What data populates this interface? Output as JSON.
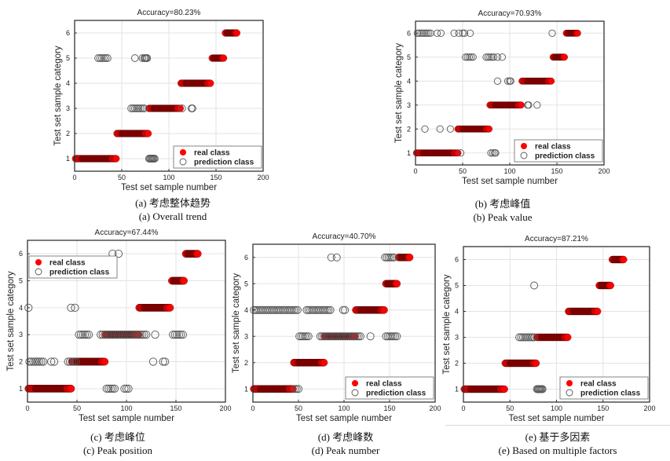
{
  "figure": {
    "colors": {
      "real": "#ff0000",
      "real_dark": "#8b0000",
      "pred_stroke": "#555555",
      "grid": "#e3e3e3",
      "axis": "#333333"
    }
  },
  "chart_data": [
    {
      "id": "a",
      "type": "scatter",
      "title": "Accuracy=80.23%",
      "xlabel": "Test set sample number",
      "ylabel": "Test set sample category",
      "xlim": [
        0,
        200
      ],
      "ylim": [
        0.5,
        6.5
      ],
      "xticks": [
        0,
        50,
        100,
        150,
        200
      ],
      "yticks": [
        1,
        2,
        3,
        4,
        5,
        6
      ],
      "grid": true,
      "legend": {
        "position": "bottom-right",
        "entries": [
          "real class",
          "prediction  class"
        ]
      },
      "caption_cn": "(a)  考虑整体趋势",
      "caption_en": "(a) Overall trend",
      "series": [
        {
          "name": "real class",
          "segments": [
            {
              "y": 1,
              "x": [
                1,
                44
              ]
            },
            {
              "y": 2,
              "x": [
                45,
                78
              ]
            },
            {
              "y": 3,
              "x": [
                79,
                112
              ]
            },
            {
              "y": 4,
              "x": [
                113,
                144
              ]
            },
            {
              "y": 5,
              "x": [
                146,
                158
              ]
            },
            {
              "y": 6,
              "x": [
                160,
                172
              ]
            }
          ]
        },
        {
          "name": "prediction  class",
          "points": [
            {
              "y": 5,
              "x": [
                25,
                27,
                29,
                31,
                33,
                35,
                64,
                72,
                74,
                75,
                76,
                77
              ]
            },
            {
              "y": 3,
              "x": [
                60,
                62,
                64,
                66,
                68,
                70,
                72,
                74,
                114,
                124,
                125
              ]
            },
            {
              "y": 1,
              "x": [
                79,
                80,
                81,
                82,
                83,
                84,
                85
              ]
            }
          ]
        }
      ]
    },
    {
      "id": "b",
      "type": "scatter",
      "title": "Accuracy=70.93%",
      "xlabel": "Test set sample number",
      "ylabel": "Test set sample category",
      "xlim": [
        0,
        200
      ],
      "ylim": [
        0.5,
        6.5
      ],
      "xticks": [
        0,
        50,
        100,
        150,
        200
      ],
      "yticks": [
        1,
        2,
        3,
        4,
        5,
        6
      ],
      "grid": true,
      "legend": {
        "position": "bottom-right",
        "entries": [
          "real class",
          "prediction  class"
        ]
      },
      "caption_cn": "(b)  考虑峰值",
      "caption_en": "(b) Peak value",
      "series": [
        {
          "name": "real class",
          "segments": [
            {
              "y": 1,
              "x": [
                1,
                45
              ]
            },
            {
              "y": 2,
              "x": [
                45,
                78
              ]
            },
            {
              "y": 3,
              "x": [
                79,
                112
              ]
            },
            {
              "y": 4,
              "x": [
                113,
                144
              ]
            },
            {
              "y": 5,
              "x": [
                146,
                158
              ]
            },
            {
              "y": 6,
              "x": [
                160,
                172
              ]
            }
          ]
        },
        {
          "name": "prediction  class",
          "points": [
            {
              "y": 6,
              "x": [
                2,
                4,
                6,
                8,
                10,
                12,
                14,
                16,
                23,
                27,
                41,
                46,
                50,
                52,
                58,
                145
              ]
            },
            {
              "y": 5,
              "x": [
                53,
                55,
                57,
                59,
                61,
                75,
                77,
                79,
                81,
                83,
                87,
                92
              ]
            },
            {
              "y": 4,
              "x": [
                87,
                98,
                100,
                101
              ]
            },
            {
              "y": 3,
              "x": [
                119,
                120,
                129
              ]
            },
            {
              "y": 2,
              "x": [
                10,
                26,
                37
              ]
            },
            {
              "y": 1,
              "x": [
                48,
                80,
                82,
                84,
                85
              ]
            }
          ]
        }
      ]
    },
    {
      "id": "c",
      "type": "scatter",
      "title": "Accuracy=67.44%",
      "xlabel": "Test set sample number",
      "ylabel": "Test set sample category",
      "xlim": [
        0,
        200
      ],
      "ylim": [
        0.5,
        6.5
      ],
      "xticks": [
        0,
        50,
        100,
        150,
        200
      ],
      "yticks": [
        1,
        2,
        3,
        4,
        5,
        6
      ],
      "grid": true,
      "legend": {
        "position": "top-left",
        "entries": [
          "real class",
          "prediction  class"
        ]
      },
      "caption_cn": "(c)  考虑峰位",
      "caption_en": "(c) Peak position",
      "series": [
        {
          "name": "real class",
          "segments": [
            {
              "y": 1,
              "x": [
                1,
                44
              ]
            },
            {
              "y": 2,
              "x": [
                45,
                78
              ]
            },
            {
              "y": 3,
              "x": [
                79,
                112
              ]
            },
            {
              "y": 4,
              "x": [
                113,
                144
              ]
            },
            {
              "y": 5,
              "x": [
                146,
                158
              ]
            },
            {
              "y": 6,
              "x": [
                160,
                172
              ]
            }
          ]
        },
        {
          "name": "prediction  class",
          "points": [
            {
              "y": 6,
              "x": [
                86,
                92
              ]
            },
            {
              "y": 4,
              "x": [
                1,
                44,
                48
              ]
            },
            {
              "y": 3,
              "x": [
                52,
                54,
                56,
                58,
                60,
                62,
                74,
                76,
                78,
                80,
                82,
                84,
                86,
                88,
                90,
                92,
                94,
                96,
                98,
                100,
                102,
                104,
                106,
                108,
                110,
                112,
                114,
                116,
                118,
                120,
                129,
                147,
                149,
                151,
                153,
                155,
                157
              ]
            },
            {
              "y": 2,
              "x": [
                2,
                4,
                6,
                8,
                10,
                12,
                14,
                16,
                24,
                27,
                41,
                43,
                45,
                47,
                49,
                127,
                137,
                139
              ]
            },
            {
              "y": 1,
              "x": [
                80,
                82,
                84,
                86,
                88,
                98,
                100,
                102
              ]
            }
          ]
        }
      ]
    },
    {
      "id": "d",
      "type": "scatter",
      "title": "Accuracy=40.70%",
      "xlabel": "Test set sample number",
      "ylabel": "Test set sample category",
      "xlim": [
        0,
        200
      ],
      "ylim": [
        0.5,
        6.5
      ],
      "xticks": [
        0,
        50,
        100,
        150,
        200
      ],
      "yticks": [
        1,
        2,
        3,
        4,
        5,
        6
      ],
      "grid": true,
      "legend": {
        "position": "bottom-right",
        "entries": [
          "real class",
          "prediction  class"
        ]
      },
      "caption_cn": "(d)  考虑峰数",
      "caption_en": "(d) Peak number",
      "series": [
        {
          "name": "real class",
          "segments": [
            {
              "y": 1,
              "x": [
                1,
                44
              ]
            },
            {
              "y": 2,
              "x": [
                45,
                78
              ]
            },
            {
              "y": 3,
              "x": [
                79,
                112
              ]
            },
            {
              "y": 4,
              "x": [
                113,
                144
              ]
            },
            {
              "y": 5,
              "x": [
                146,
                158
              ]
            },
            {
              "y": 6,
              "x": [
                160,
                172
              ]
            }
          ]
        },
        {
          "name": "prediction  class",
          "points": [
            {
              "y": 6,
              "x": [
                86,
                92,
                145,
                147,
                149,
                151,
                153,
                155
              ]
            },
            {
              "y": 4,
              "x": [
                1,
                3,
                5,
                7,
                9,
                11,
                13,
                15,
                17,
                19,
                21,
                23,
                25,
                27,
                29,
                31,
                33,
                35,
                37,
                39,
                41,
                43,
                45,
                47,
                49,
                59,
                61,
                63,
                65,
                67,
                69,
                71,
                73,
                75,
                77,
                79,
                81,
                83,
                85,
                99,
                101
              ]
            },
            {
              "y": 3,
              "x": [
                51,
                53,
                55,
                57,
                59,
                61,
                74,
                76,
                78,
                80,
                82,
                84,
                86,
                88,
                90,
                92,
                94,
                96,
                98,
                100,
                102,
                104,
                106,
                108,
                110,
                112,
                114,
                116,
                118,
                129,
                146,
                148,
                150,
                152,
                154,
                156,
                158
              ]
            },
            {
              "y": 1,
              "x": [
                46,
                48,
                50
              ]
            }
          ]
        }
      ]
    },
    {
      "id": "e",
      "type": "scatter",
      "title": "Accuracy=87.21%",
      "xlabel": "Test set sample number",
      "ylabel": "Test set sample category",
      "xlim": [
        0,
        200
      ],
      "ylim": [
        0.5,
        6.5
      ],
      "xticks": [
        0,
        50,
        100,
        150,
        200
      ],
      "yticks": [
        1,
        2,
        3,
        4,
        5,
        6
      ],
      "grid": true,
      "legend": {
        "position": "bottom-right",
        "entries": [
          "real class",
          "prediction  class"
        ]
      },
      "caption_cn": "(e)  基于多因素",
      "caption_en": "(e) Based on multiple factors",
      "series": [
        {
          "name": "real class",
          "segments": [
            {
              "y": 1,
              "x": [
                1,
                44
              ]
            },
            {
              "y": 2,
              "x": [
                45,
                78
              ]
            },
            {
              "y": 3,
              "x": [
                79,
                112
              ]
            },
            {
              "y": 4,
              "x": [
                113,
                144
              ]
            },
            {
              "y": 5,
              "x": [
                146,
                158
              ]
            },
            {
              "y": 6,
              "x": [
                160,
                172
              ]
            }
          ]
        },
        {
          "name": "prediction  class",
          "points": [
            {
              "y": 5,
              "x": [
                76
              ]
            },
            {
              "y": 3,
              "x": [
                60,
                62,
                64,
                66,
                68,
                70,
                72,
                74,
                76
              ]
            },
            {
              "y": 1,
              "x": [
                79,
                80,
                81,
                82,
                83,
                84,
                85
              ]
            }
          ]
        }
      ]
    }
  ]
}
